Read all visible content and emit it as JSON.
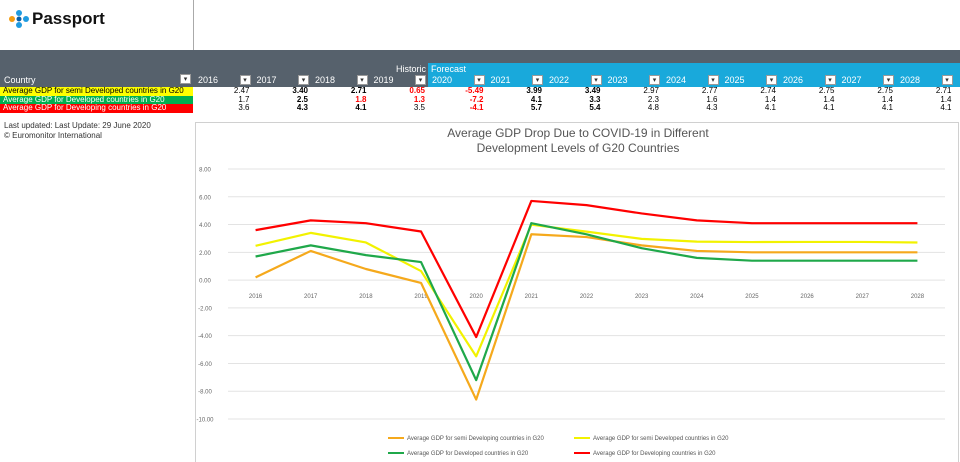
{
  "header": {
    "brand": "Passport"
  },
  "notes": [
    "Last updated: Last Update: 29 June 2020",
    "© Euromonitor International"
  ],
  "table": {
    "historic": "Historic",
    "forecast": "Forecast",
    "columns": [
      "Country",
      "2016",
      "2017",
      "2018",
      "2019",
      "2020",
      "2021",
      "2022",
      "2023",
      "2024",
      "2025",
      "2026",
      "2027",
      "2028"
    ],
    "rows": [
      {
        "label": "Average GDP for semi Developed countries in G20",
        "color": "#ffff00",
        "cells": [
          {
            "text": "2.47"
          },
          {
            "text": "3.40",
            "bold": true
          },
          {
            "text": "2.71",
            "bold": true
          },
          {
            "text": "0.65",
            "bold": true,
            "color": "#ff0000"
          },
          {
            "text": "-5.49",
            "bold": true,
            "color": "#ff0000"
          },
          {
            "text": "3.99",
            "bold": true
          },
          {
            "text": "3.49",
            "bold": true
          },
          {
            "text": "2.97"
          },
          {
            "text": "2.77"
          },
          {
            "text": "2.74"
          },
          {
            "text": "2.75"
          },
          {
            "text": "2.75"
          },
          {
            "text": "2.71"
          }
        ]
      },
      {
        "label": "Average GDP for Developed countries in G20",
        "color": "#00b050",
        "cells": [
          {
            "text": "1.7"
          },
          {
            "text": "2.5",
            "bold": true
          },
          {
            "text": "1.8",
            "bold": true,
            "color": "#ff0000"
          },
          {
            "text": "1.3",
            "bold": true,
            "color": "#ff0000"
          },
          {
            "text": "-7.2",
            "bold": true,
            "color": "#ff0000"
          },
          {
            "text": "4.1",
            "bold": true
          },
          {
            "text": "3.3",
            "bold": true
          },
          {
            "text": "2.3"
          },
          {
            "text": "1.6"
          },
          {
            "text": "1.4"
          },
          {
            "text": "1.4"
          },
          {
            "text": "1.4"
          },
          {
            "text": "1.4"
          }
        ]
      },
      {
        "label": "Average GDP for Developing countries in G20",
        "color": "#ff0000",
        "cells": [
          {
            "text": "3.6"
          },
          {
            "text": "4.3",
            "bold": true
          },
          {
            "text": "4.1",
            "bold": true
          },
          {
            "text": "3.5"
          },
          {
            "text": "-4.1",
            "bold": true,
            "color": "#ff0000"
          },
          {
            "text": "5.7",
            "bold": true
          },
          {
            "text": "5.4",
            "bold": true
          },
          {
            "text": "4.8"
          },
          {
            "text": "4.3"
          },
          {
            "text": "4.1"
          },
          {
            "text": "4.1"
          },
          {
            "text": "4.1"
          },
          {
            "text": "4.1"
          }
        ]
      }
    ]
  },
  "chart_data": {
    "type": "line",
    "title": [
      "Average GDP Drop Due to COVID-19 in Different",
      "Development Levels of G20 Countries"
    ],
    "categories": [
      "2016",
      "2017",
      "2018",
      "2019",
      "2020",
      "2021",
      "2022",
      "2023",
      "2024",
      "2025",
      "2026",
      "2027",
      "2028"
    ],
    "series": [
      {
        "name": "Average GDP for semi Developing countries in G20",
        "color": "#f5a91c",
        "values": [
          0.2,
          2.1,
          0.8,
          -0.2,
          -8.6,
          3.3,
          3.1,
          2.5,
          2.1,
          2.0,
          2.0,
          2.0,
          2.0
        ]
      },
      {
        "name": "Average GDP for semi Developed countries in G20",
        "color": "#f2f200",
        "values": [
          2.47,
          3.4,
          2.71,
          0.65,
          -5.49,
          3.99,
          3.49,
          2.97,
          2.77,
          2.74,
          2.75,
          2.75,
          2.71
        ]
      },
      {
        "name": "Average GDP for Developed countries in G20",
        "color": "#1fa84a",
        "values": [
          1.7,
          2.5,
          1.8,
          1.3,
          -7.2,
          4.1,
          3.3,
          2.3,
          1.6,
          1.4,
          1.4,
          1.4,
          1.4
        ]
      },
      {
        "name": "Average GDP for Developing countries in G20",
        "color": "#ff0000",
        "values": [
          3.6,
          4.3,
          4.1,
          3.5,
          -4.1,
          5.7,
          5.4,
          4.8,
          4.3,
          4.1,
          4.1,
          4.1,
          4.1
        ]
      }
    ],
    "ylim": [
      -10,
      8
    ],
    "yticks": [
      {
        "value": 8,
        "label": "8.00"
      },
      {
        "value": 6,
        "label": "6.00"
      },
      {
        "value": 4,
        "label": "4.00"
      },
      {
        "value": 2,
        "label": "2.00"
      },
      {
        "value": 0,
        "label": "0.00"
      },
      {
        "value": -2,
        "label": "-2.00"
      },
      {
        "value": -4,
        "label": "-4.00"
      },
      {
        "value": -6,
        "label": "-6.00"
      },
      {
        "value": -8,
        "label": "-8.00"
      },
      {
        "value": -10,
        "label": "-10.00"
      }
    ],
    "grid": true
  }
}
